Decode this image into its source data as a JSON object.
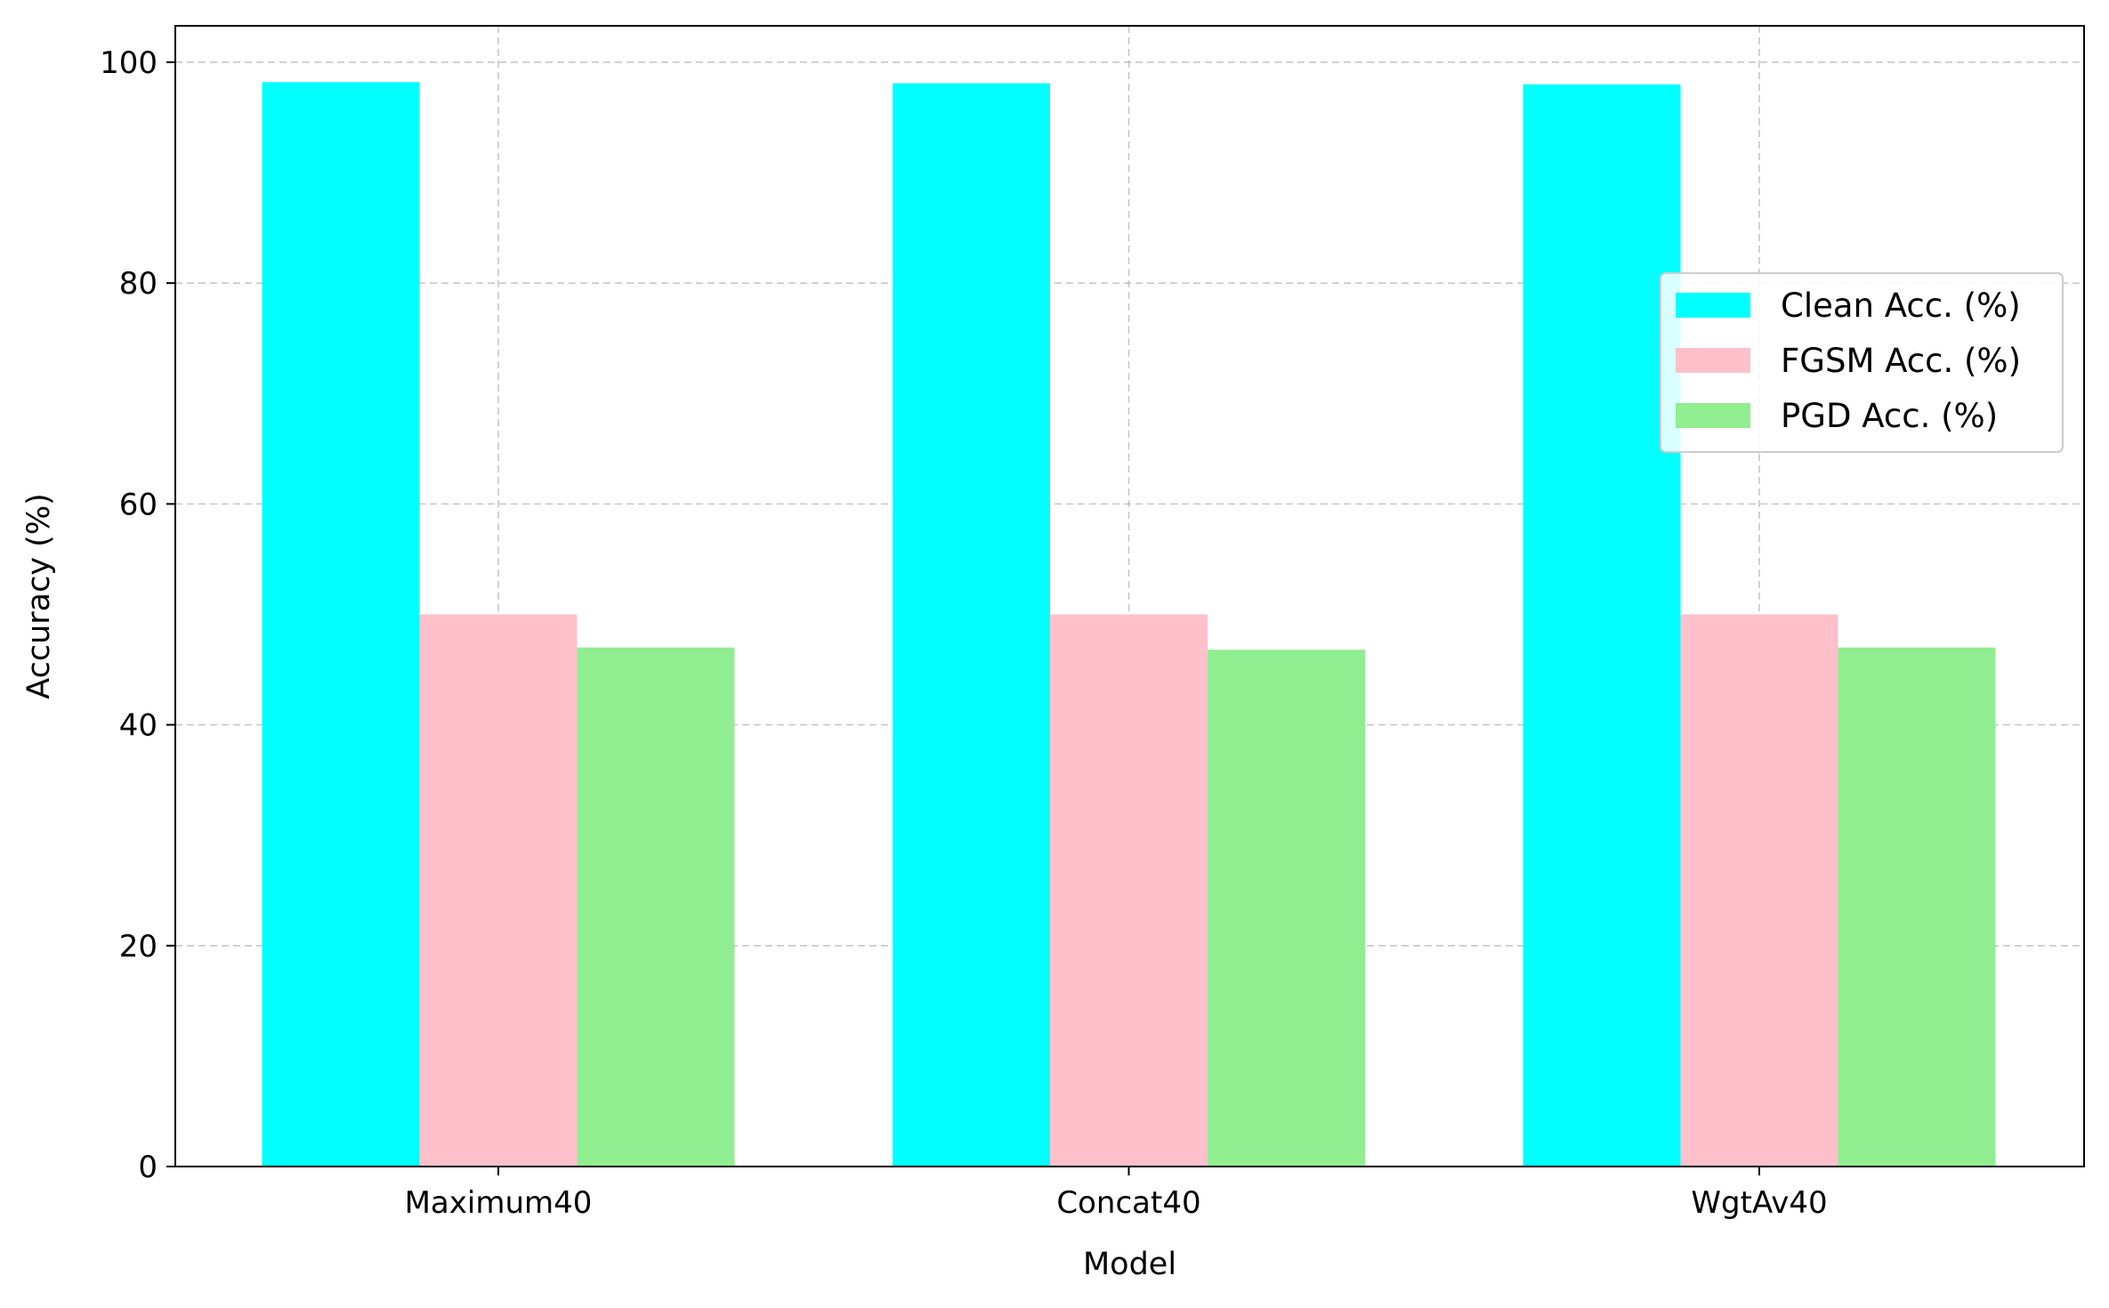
{
  "chart_data": {
    "type": "bar",
    "categories": [
      "Maximum40",
      "Concat40",
      "WgtAv40"
    ],
    "series": [
      {
        "name": "Clean Acc. (%)",
        "values": [
          98.2,
          98.1,
          98.0
        ],
        "color": "#00ffff"
      },
      {
        "name": "FGSM Acc. (%)",
        "values": [
          50.0,
          50.0,
          50.0
        ],
        "color": "#ffc0cb"
      },
      {
        "name": "PGD Acc. (%)",
        "values": [
          47.0,
          46.8,
          47.0
        ],
        "color": "#90ee90"
      }
    ],
    "title": "",
    "xlabel": "Model",
    "ylabel": "Accuracy (%)",
    "ylim": [
      0,
      103.3
    ],
    "yticks": [
      0,
      20,
      40,
      60,
      80,
      100
    ],
    "grid": true,
    "legend_position": "center-right"
  }
}
